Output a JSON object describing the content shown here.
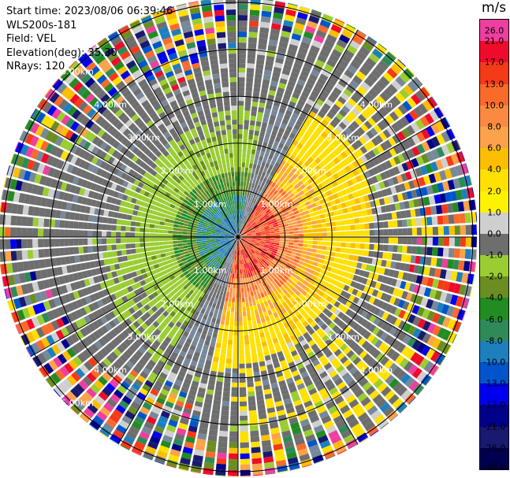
{
  "header": {
    "start_time": "Start time: 2023/08/06 06:39:46",
    "instrument": "WLS200s-181",
    "field": "Field: VEL",
    "elevation": "Elevation(deg): 35.30",
    "nrays": "NRays: 120"
  },
  "colorbar": {
    "unit": "m/s",
    "ticks": [
      "26.0",
      "21.0",
      "17.0",
      "13.0",
      "10.0",
      "8.0",
      "6.0",
      "4.0",
      "2.0",
      "1.0",
      "0.0",
      "-1.0",
      "-2.0",
      "-4.0",
      "-6.0",
      "-8.0",
      "-10.0",
      "-13.0",
      "-17.0",
      "-21.0",
      "-26.0",
      "-30.0"
    ],
    "colors": [
      "#ee3ea0",
      "#ee0c2a",
      "#f53a18",
      "#fa6a2a",
      "#fa8a40",
      "#fba24a",
      "#fbbe00",
      "#ffe000",
      "#fff200",
      "#cfcfcf",
      "#6e6e6e",
      "#9acd32",
      "#6b8e23",
      "#228b22",
      "#2e8b57",
      "#1e7fbf",
      "#0055cc",
      "#0000ee",
      "#00008b",
      "#191970",
      "#000050"
    ]
  },
  "range_rings": {
    "labels": [
      "1.00km",
      "2.00km",
      "3.00km",
      "4.00km",
      "5.00km"
    ]
  }
}
